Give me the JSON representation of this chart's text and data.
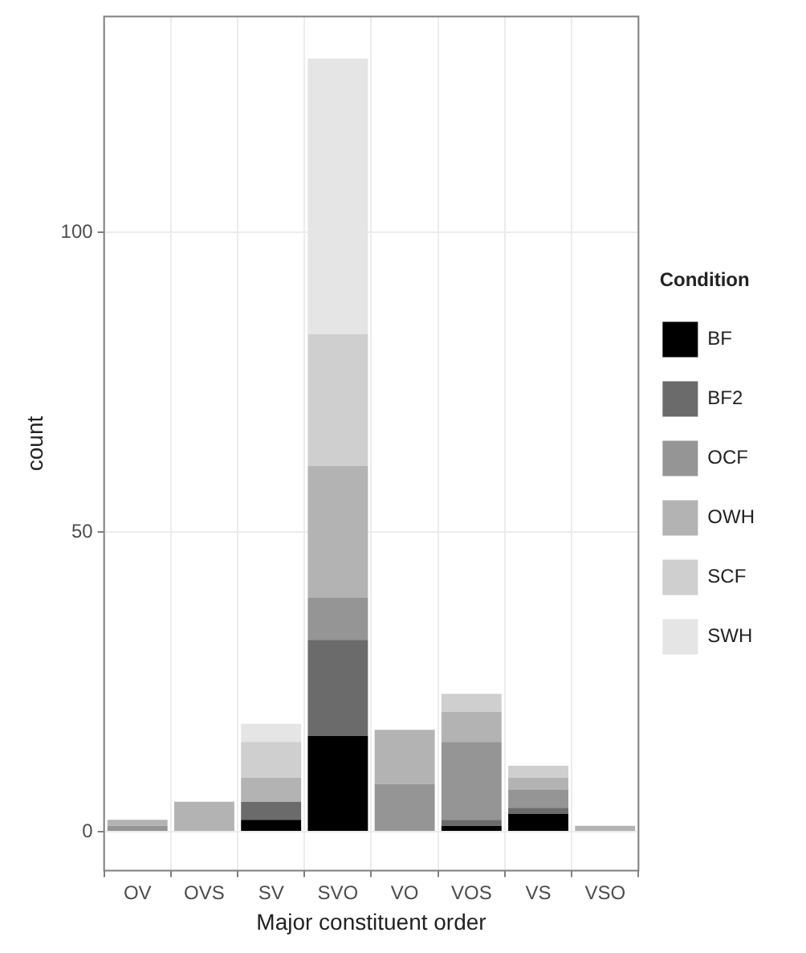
{
  "chart_data": {
    "type": "bar",
    "stacked": true,
    "xlabel": "Major constituent order",
    "ylabel": "count",
    "legend_title": "Condition",
    "legend": "right",
    "grid": true,
    "categories": [
      "OV",
      "OVS",
      "SV",
      "SVO",
      "VO",
      "VOS",
      "VS",
      "VSO"
    ],
    "ylim": [
      -6.5,
      136
    ],
    "yticks": [
      0,
      50,
      100
    ],
    "series": [
      {
        "name": "BF",
        "color": "#000000",
        "values": [
          0,
          0,
          2,
          16,
          0,
          1,
          3,
          0
        ]
      },
      {
        "name": "BF2",
        "color": "#6b6b6b",
        "values": [
          0,
          0,
          3,
          16,
          0,
          1,
          1,
          0
        ]
      },
      {
        "name": "OCF",
        "color": "#959595",
        "values": [
          1,
          0,
          0,
          7,
          8,
          13,
          3,
          0
        ]
      },
      {
        "name": "OWH",
        "color": "#b3b3b3",
        "values": [
          1,
          5,
          4,
          22,
          9,
          5,
          2,
          1
        ]
      },
      {
        "name": "SCF",
        "color": "#cfcfcf",
        "values": [
          0,
          0,
          6,
          22,
          0,
          3,
          2,
          0
        ]
      },
      {
        "name": "SWH",
        "color": "#e5e5e5",
        "values": [
          0,
          0,
          3,
          46,
          0,
          0,
          0,
          0
        ]
      }
    ]
  }
}
